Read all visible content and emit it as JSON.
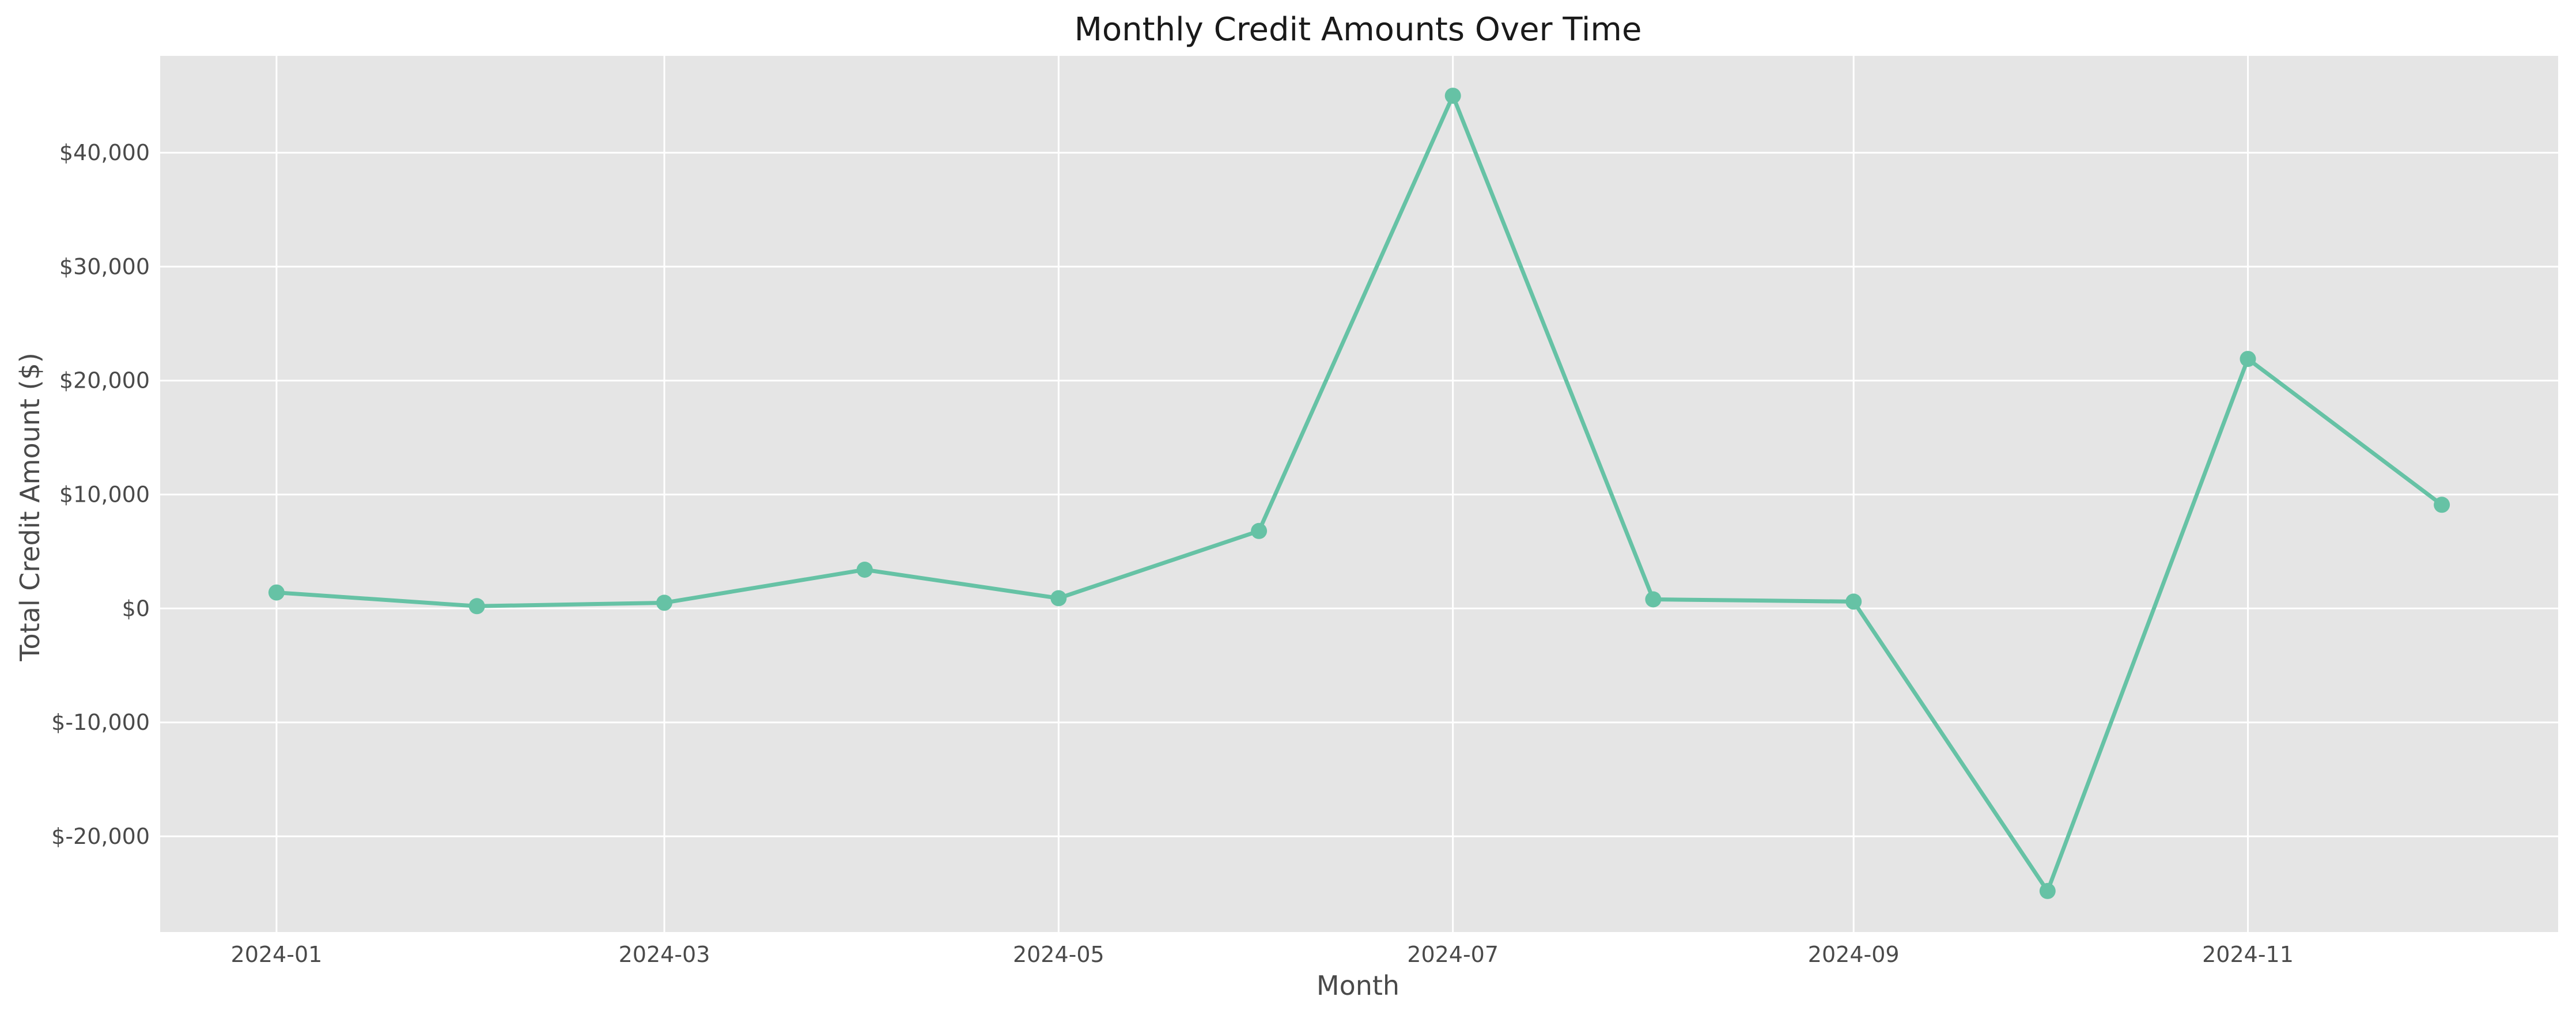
{
  "chart_data": {
    "type": "line",
    "title": "Monthly Credit Amounts Over Time",
    "xlabel": "Month",
    "ylabel": "Total Credit Amount ($)",
    "x_axis_type": "date",
    "y_tick_prefix": "$",
    "x": [
      "2024-01-01",
      "2024-02-01",
      "2024-03-01",
      "2024-04-01",
      "2024-05-01",
      "2024-06-01",
      "2024-07-01",
      "2024-08-01",
      "2024-09-01",
      "2024-10-01",
      "2024-11-01",
      "2024-12-01"
    ],
    "series": [
      {
        "values": [
          1400,
          200,
          500,
          3400,
          900,
          6800,
          45000,
          800,
          600,
          -24800,
          21900,
          9100
        ],
        "color": "#66c2a5",
        "marker": "circle"
      }
    ],
    "x_ticks": [
      "2024-01",
      "2024-03",
      "2024-05",
      "2024-07",
      "2024-09",
      "2024-11"
    ],
    "y_ticks": [
      {
        "value": -20000,
        "label": "$-20,000"
      },
      {
        "value": -10000,
        "label": "$-10,000"
      },
      {
        "value": 0,
        "label": "$0"
      },
      {
        "value": 10000,
        "label": "$10,000"
      },
      {
        "value": 20000,
        "label": "$20,000"
      },
      {
        "value": 30000,
        "label": "$30,000"
      },
      {
        "value": 40000,
        "label": "$40,000"
      }
    ],
    "xlim": [
      "2023-12-14",
      "2024-12-19"
    ],
    "ylim": [
      -28400,
      48500
    ],
    "grid": true,
    "background": "#e5e5e5",
    "grid_color": "#ffffff",
    "legend": "none"
  }
}
